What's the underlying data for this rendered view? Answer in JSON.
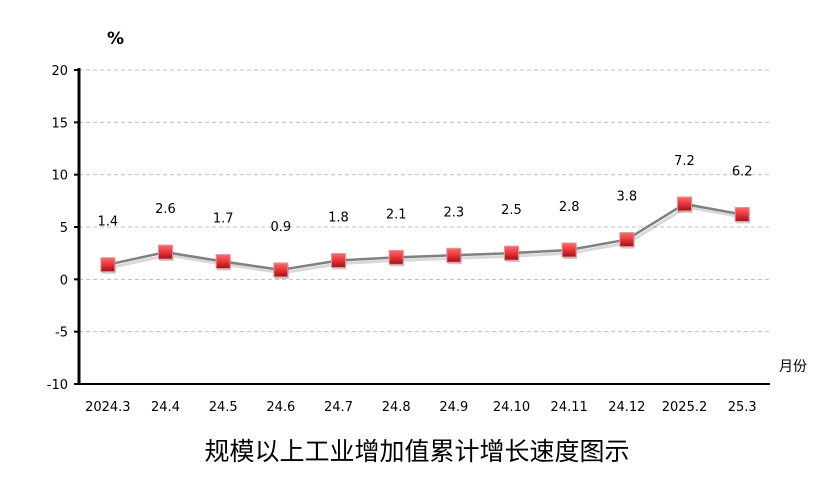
{
  "chart_data": {
    "type": "line",
    "title": "规模以上工业增加值累计增长速度图示",
    "ylabel": "%",
    "xlabel": "月份",
    "ylim": [
      -10,
      20
    ],
    "yticks": [
      -10,
      -5,
      0,
      5,
      10,
      15,
      20
    ],
    "grid": true,
    "categories": [
      "2024.3",
      "24.4",
      "24.5",
      "24.6",
      "24.7",
      "24.8",
      "24.9",
      "24.10",
      "24.11",
      "24.12",
      "2025.2",
      "25.3"
    ],
    "series": [
      {
        "values": [
          1.4,
          2.6,
          1.7,
          0.9,
          1.8,
          2.1,
          2.3,
          2.5,
          2.8,
          3.8,
          7.2,
          6.2
        ],
        "labels": [
          "1.4",
          "2.6",
          "1.7",
          "0.9",
          "1.8",
          "2.1",
          "2.3",
          "2.5",
          "2.8",
          "3.8",
          "7.2",
          "6.2"
        ]
      }
    ],
    "colors": {
      "line": "#808080",
      "marker": "#e8333a",
      "grid": "#c0c0c0"
    }
  }
}
